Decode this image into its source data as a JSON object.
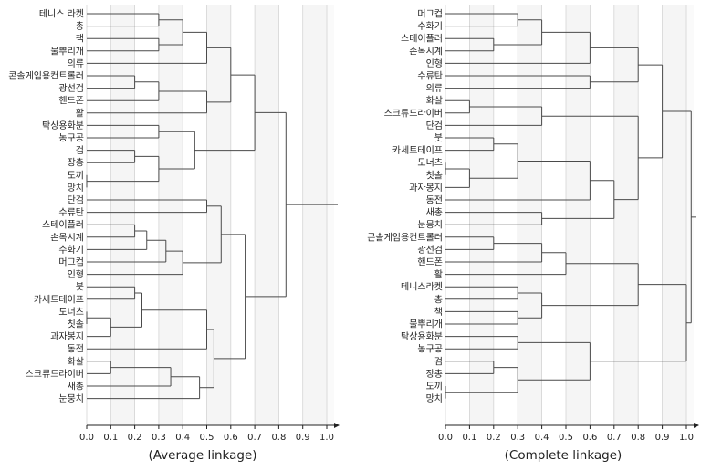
{
  "chart_data": [
    {
      "type": "dendrogram",
      "xlabel": "(Average linkage)",
      "xlim": [
        0,
        1.05
      ],
      "ticks": [
        "0.0",
        "0.1",
        "0.2",
        "0.3",
        "0.4",
        "0.5",
        "0.6",
        "0.7",
        "0.8",
        "0.9",
        "1.0"
      ],
      "grid": "vertical",
      "leaves": [
        "테니스 라켓",
        "총",
        "책",
        "물뿌리개",
        "의류",
        "콘솔게임용컨트롤러",
        "광선검",
        "핸드폰",
        "활",
        "탁상용화분",
        "농구공",
        "검",
        "장총",
        "도끼",
        "망치",
        "단검",
        "수류탄",
        "스테이플러",
        "손목시계",
        "수화기",
        "머그컵",
        "인형",
        "붓",
        "카세트테이프",
        "도너츠",
        "칫솔",
        "과자봉지",
        "동전",
        "화살",
        "스크류드라이버",
        "새총",
        "눈뭉치"
      ],
      "merges": [
        {
          "left": "테니스 라켓",
          "right": "총",
          "height": 0.3
        },
        {
          "left": "책",
          "right": "물뿌리개",
          "height": 0.3
        },
        {
          "left": "테니스 라켓|총",
          "right": "책|물뿌리개",
          "height": 0.4
        },
        {
          "left": "테니스 라켓|총|책|물뿌리개",
          "right": "의류",
          "height": 0.5
        },
        {
          "left": "콘솔게임용컨트롤러",
          "right": "광선검",
          "height": 0.2
        },
        {
          "left": "콘솔게임용컨트롤러|광선검",
          "right": "핸드폰",
          "height": 0.3
        },
        {
          "left": "콘솔게임용컨트롤러|광선검|핸드폰",
          "right": "활",
          "height": 0.5
        },
        {
          "left": "테니스 라켓|총|책|물뿌리개|의류",
          "right": "콘솔게임용컨트롤러|광선검|핸드폰|활",
          "height": 0.6
        },
        {
          "left": "탁상용화분",
          "right": "농구공",
          "height": 0.3
        },
        {
          "left": "검",
          "right": "장총",
          "height": 0.2
        },
        {
          "left": "도끼",
          "right": "망치",
          "height": 0.0
        },
        {
          "left": "검|장총",
          "right": "도끼|망치",
          "height": 0.3
        },
        {
          "left": "탁상용화분|농구공",
          "right": "검|장총|도끼|망치",
          "height": 0.45
        },
        {
          "left": "테니스 라켓|총|책|물뿌리개|의류|콘솔게임용컨트롤러|광선검|핸드폰|활",
          "right": "탁상용화분|농구공|검|장총|도끼|망치",
          "height": 0.7
        },
        {
          "left": "단검",
          "right": "수류탄",
          "height": 0.5
        },
        {
          "left": "스테이플러",
          "right": "손목시계",
          "height": 0.2
        },
        {
          "left": "스테이플러|손목시계",
          "right": "수화기",
          "height": 0.25
        },
        {
          "left": "스테이플러|손목시계|수화기",
          "right": "머그컵",
          "height": 0.33
        },
        {
          "left": "스테이플러|손목시계|수화기|머그컵",
          "right": "인형",
          "height": 0.4
        },
        {
          "left": "단검|수류탄",
          "right": "스테이플러|손목시계|수화기|머그컵|인형",
          "height": 0.56
        },
        {
          "left": "붓",
          "right": "카세트테이프",
          "height": 0.2
        },
        {
          "left": "도너츠",
          "right": "칫솔",
          "height": 0.0
        },
        {
          "left": "도너츠|칫솔",
          "right": "과자봉지",
          "height": 0.1
        },
        {
          "left": "붓|카세트테이프",
          "right": "도너츠|칫솔|과자봉지",
          "height": 0.23
        },
        {
          "left": "붓|카세트테이프|도너츠|칫솔|과자봉지",
          "right": "동전",
          "height": 0.5
        },
        {
          "left": "화살",
          "right": "스크류드라이버",
          "height": 0.1
        },
        {
          "left": "화살|스크류드라이버",
          "right": "새총",
          "height": 0.35
        },
        {
          "left": "화살|스크류드라이버|새총",
          "right": "눈뭉치",
          "height": 0.47
        },
        {
          "left": "붓|카세트테이프|도너츠|칫솔|과자봉지|동전",
          "right": "화살|스크류드라이버|새총|눈뭉치",
          "height": 0.53
        },
        {
          "left": "단검|수류탄|스테이플러|손목시계|수화기|머그컵|인형",
          "right": "붓|카세트테이프|도너츠|칫솔|과자봉지|동전|화살|스크류드라이버|새총|눈뭉치",
          "height": 0.66
        },
        {
          "left": "테니스 라켓|총|책|물뿌리개|의류|콘솔게임용컨트롤러|광선검|핸드폰|활|탁상용화분|농구공|검|장총|도끼|망치",
          "right": "단검|수류탄|스테이플러|손목시계|수화기|머그컵|인형|붓|카세트테이프|도너츠|칫솔|과자봉지|동전|화살|스크류드라이버|새총|눈뭉치",
          "height": 0.83
        }
      ],
      "root_height": 1.04
    },
    {
      "type": "dendrogram",
      "xlabel": "(Complete  linkage)",
      "xlim": [
        0,
        1.05
      ],
      "ticks": [
        "0.0",
        "0.1",
        "0.2",
        "0.3",
        "0.4",
        "0.5",
        "0.6",
        "0.7",
        "0.8",
        "0.9",
        "1.0"
      ],
      "grid": "vertical",
      "leaves": [
        "머그컵",
        "수화기",
        "스테이플러",
        "손목시계",
        "인형",
        "수류탄",
        "의류",
        "화살",
        "스크류드라이버",
        "단검",
        "붓",
        "카세트테이프",
        "도너츠",
        "칫솔",
        "과자봉지",
        "동전",
        "새총",
        "눈뭉치",
        "콘솔게임용컨트롤러",
        "광선검",
        "핸드폰",
        "활",
        "테니스라켓",
        "총",
        "책",
        "물뿌리개",
        "탁상용화분",
        "농구공",
        "검",
        "장총",
        "도끼",
        "망치"
      ],
      "merges": [
        {
          "left": "머그컵",
          "right": "수화기",
          "height": 0.3
        },
        {
          "left": "스테이플러",
          "right": "손목시계",
          "height": 0.2
        },
        {
          "left": "머그컵|수화기",
          "right": "스테이플러|손목시계",
          "height": 0.4
        },
        {
          "left": "머그컵|수화기|스테이플러|손목시계",
          "right": "인형",
          "height": 0.6
        },
        {
          "left": "수류탄",
          "right": "의류",
          "height": 0.6
        },
        {
          "left": "머그컵|수화기|스테이플러|손목시계|인형",
          "right": "수류탄|의류",
          "height": 0.8
        },
        {
          "left": "화살",
          "right": "스크류드라이버",
          "height": 0.1
        },
        {
          "left": "화살|스크류드라이버",
          "right": "단검",
          "height": 0.4
        },
        {
          "left": "붓",
          "right": "카세트테이프",
          "height": 0.2
        },
        {
          "left": "도너츠",
          "right": "칫솔",
          "height": 0.0
        },
        {
          "left": "도너츠|칫솔",
          "right": "과자봉지",
          "height": 0.1
        },
        {
          "left": "붓|카세트테이프",
          "right": "도너츠|칫솔|과자봉지",
          "height": 0.3
        },
        {
          "left": "붓|카세트테이프|도너츠|칫솔|과자봉지",
          "right": "동전",
          "height": 0.6
        },
        {
          "left": "새총",
          "right": "눈뭉치",
          "height": 0.4
        },
        {
          "left": "붓|카세트테이프|도너츠|칫솔|과자봉지|동전",
          "right": "새총|눈뭉치",
          "height": 0.7
        },
        {
          "left": "화살|스크류드라이버|단검",
          "right": "붓|카세트테이프|도너츠|칫솔|과자봉지|동전|새총|눈뭉치",
          "height": 0.8
        },
        {
          "left": "머그컵|수화기|스테이플러|손목시계|인형|수류탄|의류",
          "right": "화살|스크류드라이버|단검|붓|카세트테이프|도너츠|칫솔|과자봉지|동전|새총|눈뭉치",
          "height": 0.9
        },
        {
          "left": "콘솔게임용컨트롤러",
          "right": "광선검",
          "height": 0.2
        },
        {
          "left": "콘솔게임용컨트롤러|광선검",
          "right": "핸드폰",
          "height": 0.4
        },
        {
          "left": "콘솔게임용컨트롤러|광선검|핸드폰",
          "right": "활",
          "height": 0.5
        },
        {
          "left": "테니스라켓",
          "right": "총",
          "height": 0.3
        },
        {
          "left": "책",
          "right": "물뿌리개",
          "height": 0.3
        },
        {
          "left": "테니스라켓|총",
          "right": "책|물뿌리개",
          "height": 0.4
        },
        {
          "left": "콘솔게임용컨트롤러|광선검|핸드폰|활",
          "right": "테니스라켓|총|책|물뿌리개",
          "height": 0.8
        },
        {
          "left": "탁상용화분",
          "right": "농구공",
          "height": 0.3
        },
        {
          "left": "검",
          "right": "장총",
          "height": 0.2
        },
        {
          "left": "도끼",
          "right": "망치",
          "height": 0.0
        },
        {
          "left": "검|장총",
          "right": "도끼|망치",
          "height": 0.3
        },
        {
          "left": "탁상용화분|농구공",
          "right": "검|장총|도끼|망치",
          "height": 0.6
        },
        {
          "left": "콘솔게임용컨트롤러|광선검|핸드폰|활|테니스라켓|총|책|물뿌리개",
          "right": "탁상용화분|농구공|검|장총|도끼|망치",
          "height": 1.0
        },
        {
          "left": "머그컵|수화기|스테이플러|손목시계|인형|수류탄|의류|화살|스크류드라이버|단검|붓|카세트테이프|도너츠|칫솔|과자봉지|동전|새총|눈뭉치",
          "right": "콘솔게임용컨트롤러|광선검|핸드폰|활|테니스라켓|총|책|물뿌리개|탁상용화분|농구공|검|장총|도끼|망치",
          "height": 1.02
        }
      ],
      "root_height": 1.04
    }
  ],
  "colors": {
    "line": "#4a4a4a",
    "axis": "#222222",
    "grid": "#d4d4d4",
    "band": "#f5f5f5"
  }
}
